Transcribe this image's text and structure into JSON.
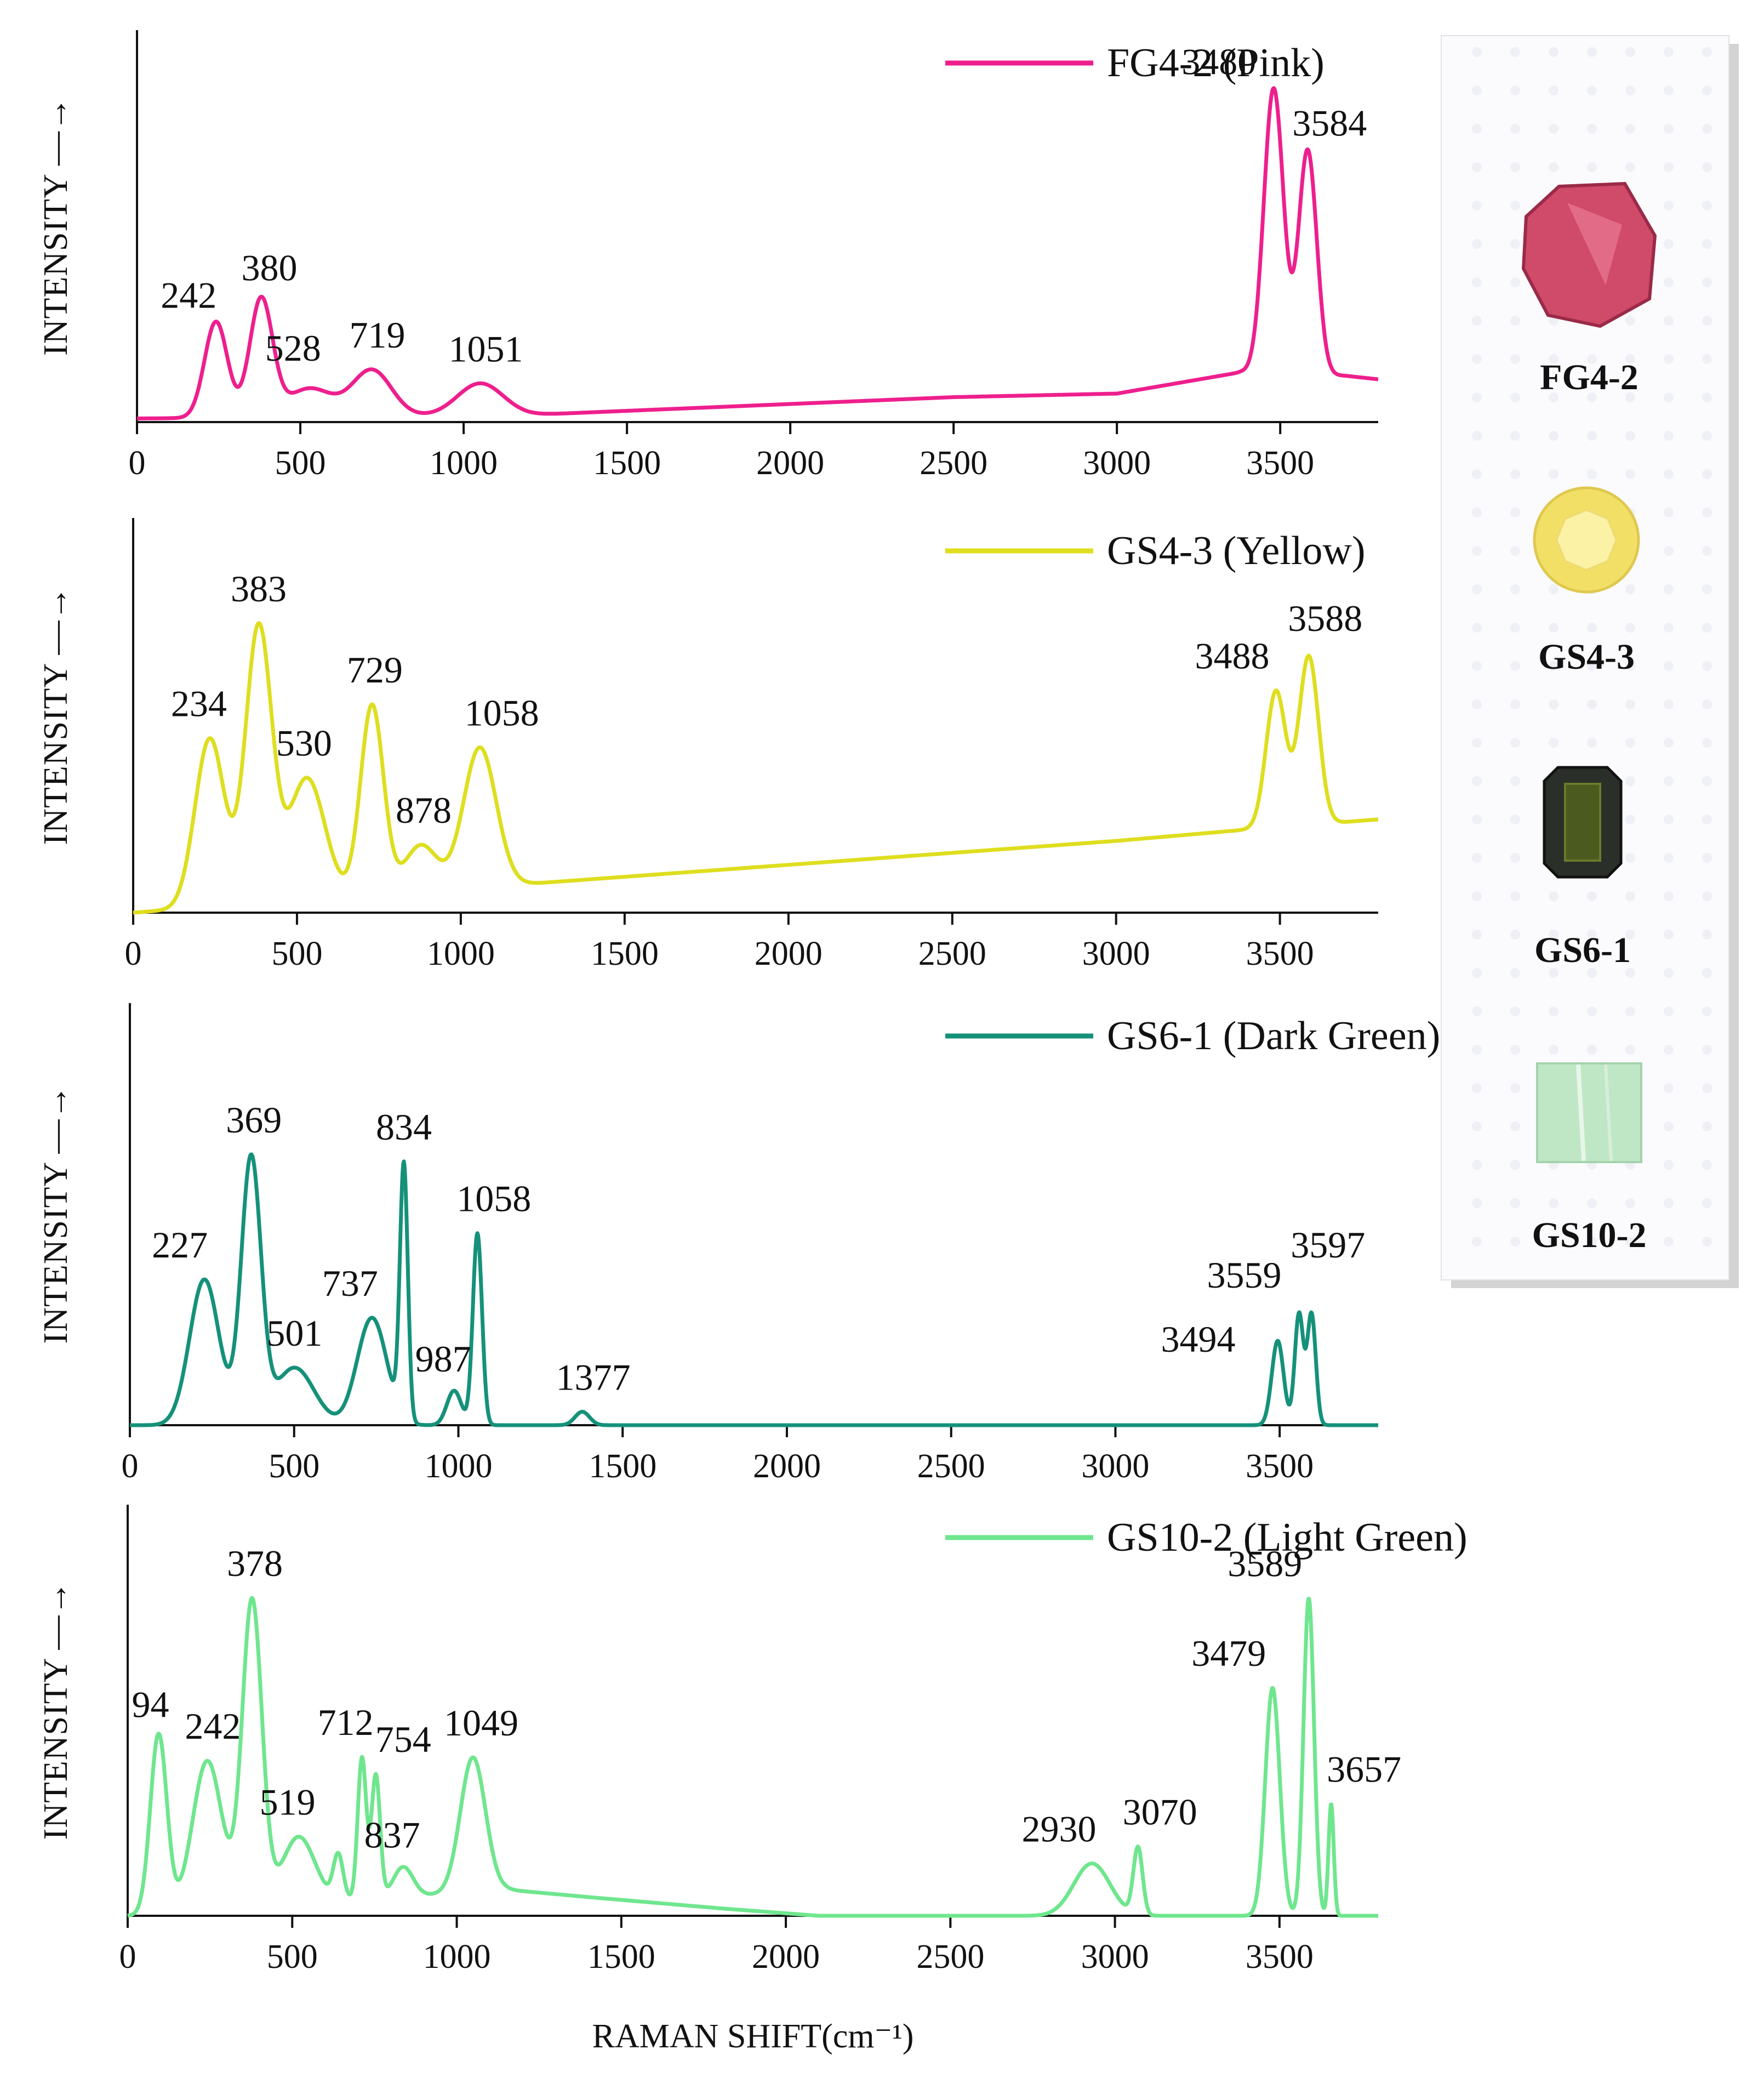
{
  "chart_data": [
    {
      "type": "line",
      "title": "",
      "xlabel": "",
      "ylabel": "INTENSITY —→",
      "xlim": [
        0,
        3800
      ],
      "ylim": [
        0,
        1.1
      ],
      "xticks": [
        0,
        500,
        1000,
        1500,
        2000,
        2500,
        3000,
        3500
      ],
      "grid": false,
      "legend": {
        "label": "FG4-2 (Pink)",
        "placement": "top-right"
      },
      "color": "#ee1f8d",
      "baseline": [
        [
          0,
          0.01
        ],
        [
          1200,
          0.02
        ],
        [
          2500,
          0.07
        ],
        [
          3000,
          0.08
        ],
        [
          3380,
          0.14
        ],
        [
          3700,
          0.13
        ],
        [
          3800,
          0.12
        ]
      ],
      "peaks": [
        {
          "x": 242,
          "y": 0.27,
          "w": 35,
          "label": "242"
        },
        {
          "x": 380,
          "y": 0.33,
          "w": 35,
          "label": "380"
        },
        {
          "x": 528,
          "y": 0.08,
          "w": 70,
          "label": "528"
        },
        {
          "x": 719,
          "y": 0.13,
          "w": 60,
          "label": "719"
        },
        {
          "x": 1051,
          "y": 0.09,
          "w": 70,
          "label": "1051"
        },
        {
          "x": 3480,
          "y": 0.8,
          "w": 30,
          "label": "3480"
        },
        {
          "x": 3584,
          "y": 0.63,
          "w": 28,
          "label": "3584"
        }
      ]
    },
    {
      "type": "line",
      "title": "",
      "xlabel": "",
      "ylabel": "INTENSITY —→",
      "xlim": [
        0,
        3800
      ],
      "ylim": [
        0,
        1.1
      ],
      "xticks": [
        0,
        500,
        1000,
        1500,
        2000,
        2500,
        3000,
        3500
      ],
      "grid": false,
      "legend": {
        "label": "GS4-3 (Yellow)",
        "placement": "top-right"
      },
      "color": "#dede1f",
      "baseline": [
        [
          0,
          0.0
        ],
        [
          1200,
          0.08
        ],
        [
          3000,
          0.2
        ],
        [
          3380,
          0.23
        ],
        [
          3800,
          0.26
        ]
      ],
      "peaks": [
        {
          "x": 234,
          "y": 0.47,
          "w": 45,
          "label": "234"
        },
        {
          "x": 383,
          "y": 0.77,
          "w": 40,
          "label": "383"
        },
        {
          "x": 530,
          "y": 0.34,
          "w": 55,
          "label": "530"
        },
        {
          "x": 729,
          "y": 0.53,
          "w": 35,
          "label": "729"
        },
        {
          "x": 878,
          "y": 0.13,
          "w": 50,
          "label": "878"
        },
        {
          "x": 1058,
          "y": 0.39,
          "w": 50,
          "label": "1058"
        },
        {
          "x": 3488,
          "y": 0.38,
          "w": 30,
          "label": "3488"
        },
        {
          "x": 3588,
          "y": 0.47,
          "w": 30,
          "label": "3588"
        }
      ]
    },
    {
      "type": "line",
      "title": "",
      "xlabel": "",
      "ylabel": "INTENSITY —→",
      "xlim": [
        0,
        3800
      ],
      "ylim": [
        0,
        1.1
      ],
      "xticks": [
        0,
        500,
        1000,
        1500,
        2000,
        2500,
        3000,
        3500
      ],
      "grid": false,
      "legend": {
        "label": "GS6-1 (Dark Green)",
        "placement": "top-right"
      },
      "color": "#15917a",
      "baseline": [
        [
          0,
          0.0
        ],
        [
          3800,
          0.0
        ]
      ],
      "peaks": [
        {
          "x": 227,
          "y": 0.38,
          "w": 45,
          "label": "227"
        },
        {
          "x": 369,
          "y": 0.69,
          "w": 30,
          "label": "369"
        },
        {
          "x": 501,
          "y": 0.15,
          "w": 60,
          "label": "501"
        },
        {
          "x": 737,
          "y": 0.28,
          "w": 45,
          "label": "737"
        },
        {
          "x": 834,
          "y": 0.66,
          "w": 12,
          "label": "834"
        },
        {
          "x": 987,
          "y": 0.09,
          "w": 22,
          "label": "987"
        },
        {
          "x": 1058,
          "y": 0.5,
          "w": 14,
          "label": "1058"
        },
        {
          "x": 1377,
          "y": 0.035,
          "w": 22,
          "label": "1377"
        },
        {
          "x": 3494,
          "y": 0.22,
          "w": 18,
          "label": "3494"
        },
        {
          "x": 3559,
          "y": 0.29,
          "w": 13,
          "label": "3559"
        },
        {
          "x": 3597,
          "y": 0.29,
          "w": 13,
          "label": "3597"
        }
      ]
    },
    {
      "type": "line",
      "title": "",
      "xlabel": "RAMAN SHIFT(cm⁻¹)",
      "ylabel": "INTENSITY —→",
      "xlim": [
        0,
        3800
      ],
      "ylim": [
        0,
        1.1
      ],
      "xticks": [
        0,
        500,
        1000,
        1500,
        2000,
        2500,
        3000,
        3500
      ],
      "grid": false,
      "legend": {
        "label": "GS10-2 (Light Green)",
        "placement": "top-right"
      },
      "color": "#6fe68e",
      "baseline": [
        [
          0,
          0.0
        ],
        [
          1150,
          0.07
        ],
        [
          1400,
          0.05
        ],
        [
          1800,
          0.02
        ],
        [
          2100,
          0.0
        ],
        [
          3800,
          0.0
        ]
      ],
      "peaks": [
        {
          "x": 94,
          "y": 0.48,
          "w": 25,
          "label": "94"
        },
        {
          "x": 242,
          "y": 0.4,
          "w": 45,
          "label": "242"
        },
        {
          "x": 378,
          "y": 0.82,
          "w": 30,
          "label": "378"
        },
        {
          "x": 519,
          "y": 0.18,
          "w": 50,
          "label": "519"
        },
        {
          "x": 640,
          "y": 0.12,
          "w": 15,
          "label": ""
        },
        {
          "x": 712,
          "y": 0.38,
          "w": 13,
          "label": "712"
        },
        {
          "x": 754,
          "y": 0.33,
          "w": 13,
          "label": "754"
        },
        {
          "x": 837,
          "y": 0.08,
          "w": 30,
          "label": "837"
        },
        {
          "x": 1049,
          "y": 0.36,
          "w": 38,
          "label": "1049"
        },
        {
          "x": 2930,
          "y": 0.14,
          "w": 55,
          "label": "2930"
        },
        {
          "x": 3070,
          "y": 0.18,
          "w": 14,
          "label": "3070"
        },
        {
          "x": 3479,
          "y": 0.61,
          "w": 22,
          "label": "3479"
        },
        {
          "x": 3589,
          "y": 0.85,
          "w": 16,
          "label": "3589"
        },
        {
          "x": 3657,
          "y": 0.3,
          "w": 8,
          "label": "3657"
        }
      ]
    }
  ],
  "samples": [
    {
      "id": "FG4-2",
      "label": "FG4-2",
      "shape": "crystal",
      "color": "#d04a6a"
    },
    {
      "id": "GS4-3",
      "label": "GS4-3",
      "shape": "round",
      "color": "#f2e066"
    },
    {
      "id": "GS6-1",
      "label": "GS6-1",
      "shape": "emerald-cut",
      "color": "#4b5a1f"
    },
    {
      "id": "GS10-2",
      "label": "GS10-2",
      "shape": "prism",
      "color": "#bfe7c5"
    }
  ]
}
